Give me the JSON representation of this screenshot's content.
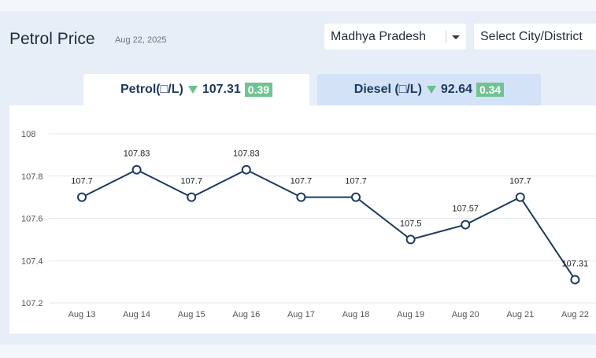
{
  "header": {
    "title": "Petrol Price",
    "date": "Aug 22, 2025",
    "state_select": "Madhya Pradesh",
    "city_select": "Select City/District"
  },
  "tabs": [
    {
      "label": "Petrol(□/L)",
      "price": "107.31",
      "change": "0.39",
      "trend": "down",
      "active": true
    },
    {
      "label": "Diesel (□/L)",
      "price": "92.64",
      "change": "0.34",
      "trend": "down",
      "active": false
    }
  ],
  "colors": {
    "line": "#1f3a60",
    "down_arrow": "#6cc08b",
    "change_badge": "#72c393",
    "active_tab": "#ffffff",
    "inactive_tab": "#d3e2f7"
  },
  "chart_data": {
    "type": "line",
    "title": "",
    "xlabel": "",
    "ylabel": "",
    "categories": [
      "Aug 13",
      "Aug 14",
      "Aug 15",
      "Aug 16",
      "Aug 17",
      "Aug 18",
      "Aug 19",
      "Aug 20",
      "Aug 21",
      "Aug 22"
    ],
    "values": [
      107.7,
      107.83,
      107.7,
      107.83,
      107.7,
      107.7,
      107.5,
      107.57,
      107.7,
      107.31
    ],
    "data_labels": [
      "107.7",
      "107.83",
      "107.7",
      "107.83",
      "107.7",
      "107.7",
      "107.5",
      "107.57",
      "107.7",
      "107.31"
    ],
    "ylim": [
      107.2,
      108
    ],
    "yticks": [
      "107.2",
      "107.4",
      "107.6",
      "107.8",
      "108"
    ],
    "grid": true,
    "legend": "none"
  }
}
